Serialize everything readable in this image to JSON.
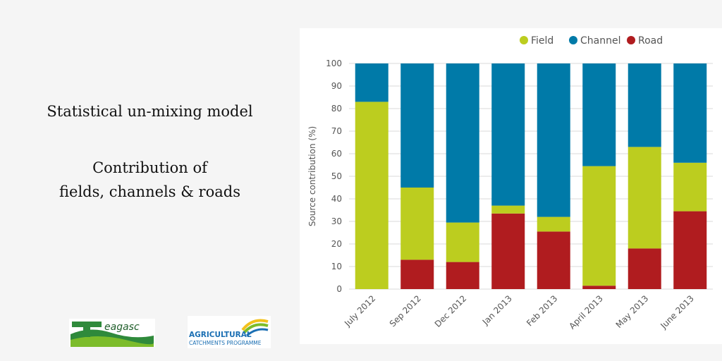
{
  "headings": {
    "line1": "Statistical un-mixing model",
    "line2": "Contribution of",
    "line3": "fields, channels & roads"
  },
  "logos": {
    "teagasc_text": "eagasc",
    "acp_line1": "AGRICULTURAL",
    "acp_line2": "CATCHMENTS PROGRAMME"
  },
  "colors": {
    "field": "#bccd1f",
    "channel": "#007aa8",
    "road": "#b01c1f",
    "grid": "#d8d8d8"
  },
  "chart_data": {
    "type": "bar",
    "stacked": true,
    "title": "",
    "xlabel": "",
    "ylabel": "Source contribution (%)",
    "ylim": [
      0,
      100
    ],
    "yticks": [
      0,
      10,
      20,
      30,
      40,
      50,
      60,
      70,
      80,
      90,
      100
    ],
    "grid": true,
    "legend_position": "top-right",
    "categories": [
      "July 2012",
      "Sep 2012",
      "Dec 2012",
      "Jan 2013",
      "Feb 2013",
      "April 2013",
      "May 2013",
      "June 2013"
    ],
    "series": [
      {
        "name": "Road",
        "key": "road",
        "values": [
          0,
          13,
          12,
          33.5,
          25.5,
          1.5,
          18,
          34.5
        ]
      },
      {
        "name": "Field",
        "key": "field",
        "values": [
          83,
          32,
          17.5,
          3.5,
          6.5,
          53,
          45,
          21.5
        ]
      },
      {
        "name": "Channel",
        "key": "channel",
        "values": [
          17,
          55,
          70.5,
          63,
          68,
          45.5,
          37,
          44
        ]
      }
    ],
    "legend_order": [
      "Field",
      "Channel",
      "Road"
    ]
  }
}
